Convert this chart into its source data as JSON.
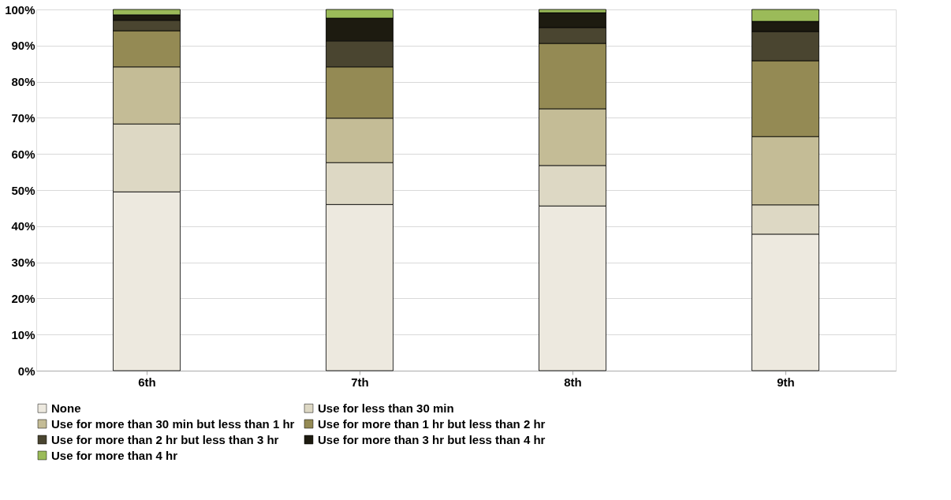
{
  "chart_data": {
    "type": "bar",
    "stacked": true,
    "categories": [
      "6th",
      "7th",
      "8th",
      "9th"
    ],
    "series": [
      {
        "name": "None",
        "color": "#ede9df",
        "values": [
          49.5,
          46.0,
          45.6,
          37.8
        ]
      },
      {
        "name": "Use for less than 30 min",
        "color": "#ddd8c4",
        "values": [
          18.8,
          11.6,
          11.2,
          8.1
        ]
      },
      {
        "name": "Use for more than 30 min but less than 1 hr",
        "color": "#c4bc96",
        "values": [
          15.8,
          12.3,
          15.7,
          18.9
        ]
      },
      {
        "name": "Use for more than 1 hr but less than 2 hr",
        "color": "#948a54",
        "values": [
          10.0,
          14.2,
          18.1,
          21.0
        ]
      },
      {
        "name": "Use for more than 2 hr but less than 3 hr",
        "color": "#4a4530",
        "values": [
          2.9,
          7.2,
          4.4,
          8.1
        ]
      },
      {
        "name": "Use for more than 3 hr but less than 4 hr",
        "color": "#1d1b10",
        "values": [
          1.5,
          6.3,
          4.1,
          2.8
        ]
      },
      {
        "name": "Use for more than 4 hr",
        "color": "#9bbb59",
        "values": [
          1.5,
          2.4,
          0.9,
          3.3
        ]
      }
    ],
    "ylim": [
      0,
      100
    ],
    "yticks": [
      {
        "value": 0,
        "label": "0%"
      },
      {
        "value": 10,
        "label": "10%"
      },
      {
        "value": 20,
        "label": "20%"
      },
      {
        "value": 30,
        "label": "30%"
      },
      {
        "value": 40,
        "label": "40%"
      },
      {
        "value": 50,
        "label": "50%"
      },
      {
        "value": 60,
        "label": "60%"
      },
      {
        "value": 70,
        "label": "70%"
      },
      {
        "value": 80,
        "label": "80%"
      },
      {
        "value": 90,
        "label": "90%"
      },
      {
        "value": 100,
        "label": "100%"
      }
    ],
    "grid": "y",
    "legend": "bottom"
  }
}
